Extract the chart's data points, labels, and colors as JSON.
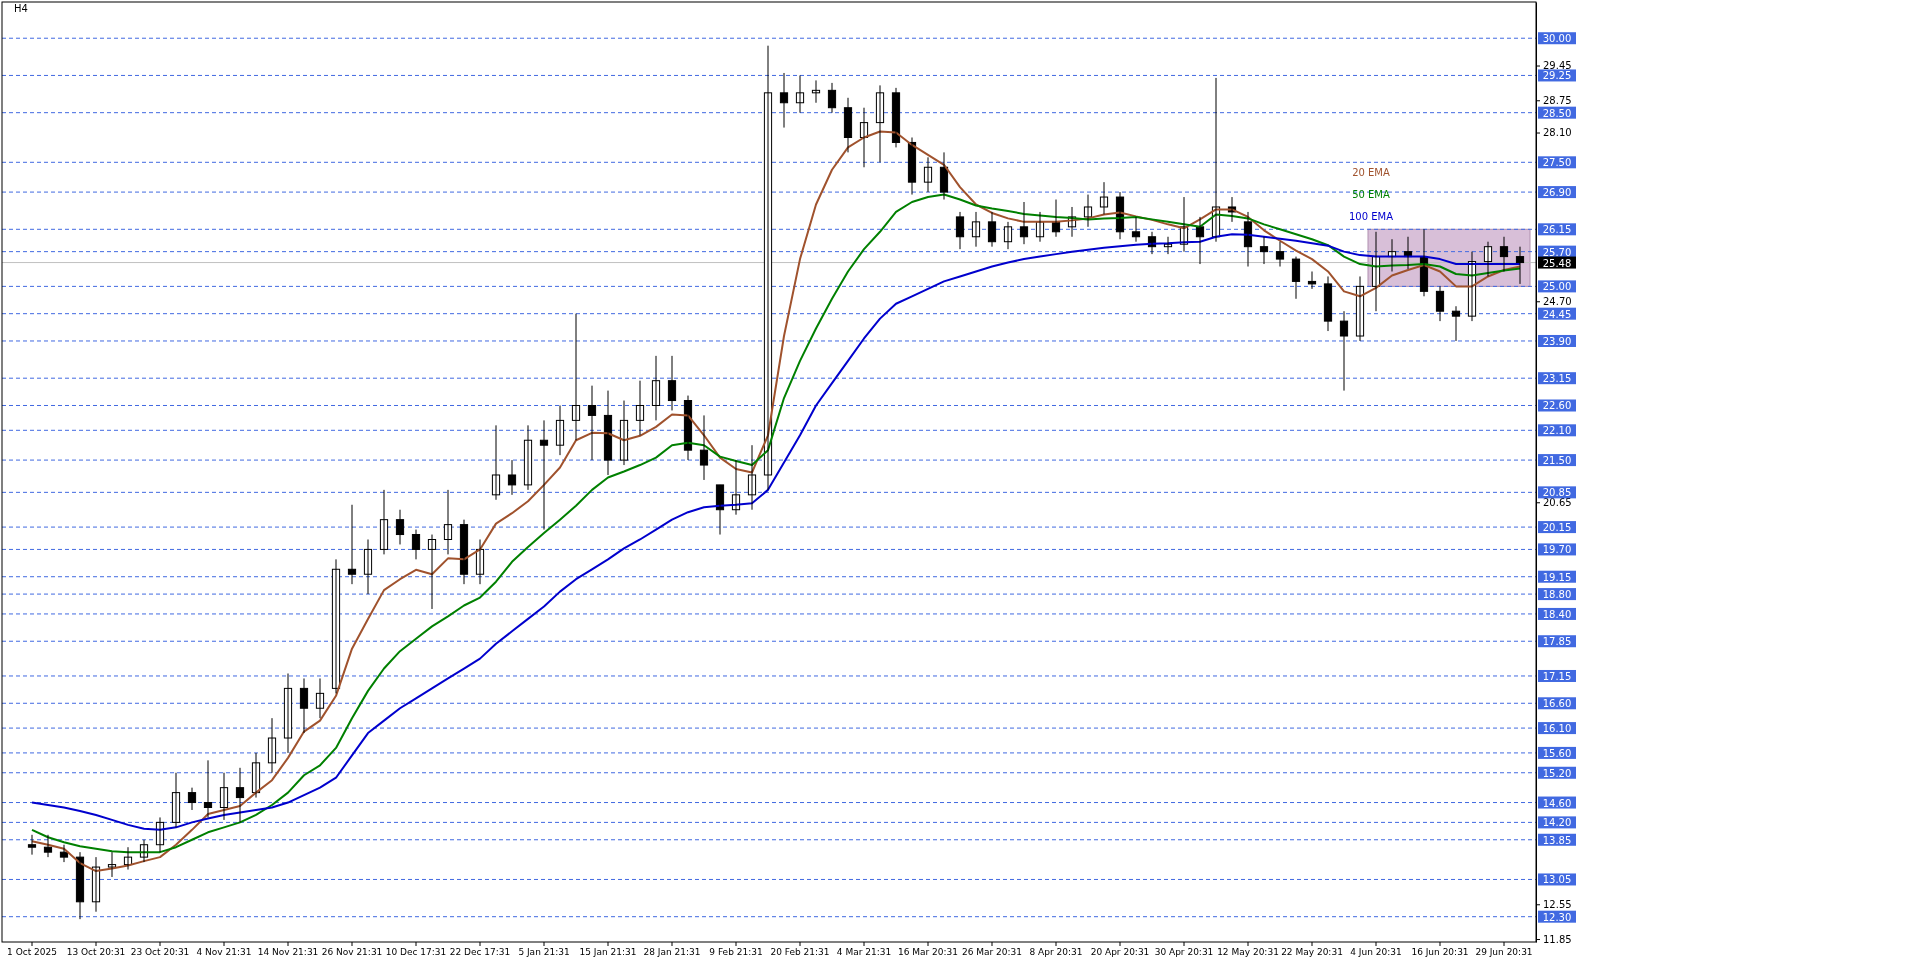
{
  "chart_data": {
    "type": "candlestick",
    "title": "H4",
    "categories": [
      "1 Oct 2025",
      null,
      null,
      null,
      "13 Oct 20:31",
      null,
      null,
      null,
      "23 Oct 20:31",
      null,
      null,
      null,
      "4 Nov 21:31",
      null,
      null,
      null,
      "14 Nov 21:31",
      null,
      null,
      null,
      "26 Nov 21:31",
      null,
      null,
      null,
      "10 Dec 17:31",
      null,
      null,
      null,
      "22 Dec 17:31",
      null,
      null,
      null,
      "5 Jan 21:31",
      null,
      null,
      null,
      "15 Jan 21:31",
      null,
      null,
      null,
      "28 Jan 21:31",
      null,
      null,
      null,
      "9 Feb 21:31",
      null,
      null,
      null,
      "20 Feb 21:31",
      null,
      null,
      null,
      "4 Mar 21:31",
      null,
      null,
      null,
      "16 Mar 20:31",
      null,
      null,
      null,
      "26 Mar 20:31",
      null,
      null,
      null,
      "8 Apr 20:31",
      null,
      null,
      null,
      "20 Apr 20:31",
      null,
      null,
      null,
      "30 Apr 20:31",
      null,
      null,
      null,
      "12 May 20:31",
      null,
      null,
      null,
      "22 May 20:31",
      null,
      null,
      null,
      "4 Jun 20:31",
      null,
      null,
      null,
      "16 Jun 20:31",
      null,
      null,
      null,
      "29 Jun 20:31",
      null
    ],
    "ohlc": [
      [
        13.75,
        13.95,
        13.55,
        13.7
      ],
      [
        13.7,
        13.95,
        13.5,
        13.6
      ],
      [
        13.6,
        13.75,
        13.4,
        13.5
      ],
      [
        13.5,
        13.6,
        12.25,
        12.6
      ],
      [
        12.6,
        13.5,
        12.4,
        13.3
      ],
      [
        13.3,
        13.6,
        13.1,
        13.35
      ],
      [
        13.35,
        13.7,
        13.25,
        13.5
      ],
      [
        13.5,
        13.85,
        13.4,
        13.75
      ],
      [
        13.75,
        14.3,
        13.6,
        14.2
      ],
      [
        14.2,
        15.2,
        14.1,
        14.8
      ],
      [
        14.8,
        14.9,
        14.45,
        14.6
      ],
      [
        14.6,
        15.45,
        14.3,
        14.5
      ],
      [
        14.5,
        15.2,
        14.25,
        14.9
      ],
      [
        14.9,
        15.3,
        14.2,
        14.7
      ],
      [
        14.8,
        15.6,
        14.7,
        15.4
      ],
      [
        15.4,
        16.3,
        15.2,
        15.9
      ],
      [
        15.9,
        17.2,
        15.6,
        16.9
      ],
      [
        16.9,
        17.1,
        16.0,
        16.5
      ],
      [
        16.5,
        17.1,
        16.3,
        16.8
      ],
      [
        16.9,
        19.5,
        16.8,
        19.3
      ],
      [
        19.3,
        20.6,
        19.0,
        19.2
      ],
      [
        19.2,
        19.9,
        18.8,
        19.7
      ],
      [
        19.7,
        20.9,
        19.6,
        20.3
      ],
      [
        20.3,
        20.5,
        19.8,
        20.0
      ],
      [
        20.0,
        20.1,
        19.5,
        19.7
      ],
      [
        19.7,
        20.0,
        18.5,
        19.9
      ],
      [
        19.9,
        20.9,
        19.6,
        20.2
      ],
      [
        20.2,
        20.3,
        19.0,
        19.2
      ],
      [
        19.2,
        19.9,
        19.0,
        19.7
      ],
      [
        20.8,
        22.2,
        20.7,
        21.2
      ],
      [
        21.2,
        21.5,
        20.8,
        21.0
      ],
      [
        21.0,
        22.2,
        20.9,
        21.9
      ],
      [
        21.9,
        22.3,
        20.1,
        21.8
      ],
      [
        21.8,
        22.6,
        21.6,
        22.3
      ],
      [
        22.3,
        24.45,
        21.9,
        22.6
      ],
      [
        22.6,
        23.0,
        21.5,
        22.4
      ],
      [
        22.4,
        22.9,
        21.2,
        21.5
      ],
      [
        21.5,
        22.7,
        21.4,
        22.3
      ],
      [
        22.3,
        23.1,
        22.0,
        22.6
      ],
      [
        22.6,
        23.6,
        22.3,
        23.1
      ],
      [
        23.1,
        23.6,
        22.5,
        22.7
      ],
      [
        22.7,
        22.8,
        21.5,
        21.7
      ],
      [
        21.7,
        22.4,
        21.1,
        21.4
      ],
      [
        21.0,
        21.0,
        20.0,
        20.5
      ],
      [
        20.5,
        21.5,
        20.4,
        20.8
      ],
      [
        20.8,
        21.8,
        20.5,
        21.2
      ],
      [
        21.2,
        29.85,
        20.9,
        28.9
      ],
      [
        28.9,
        29.3,
        28.2,
        28.7
      ],
      [
        28.7,
        29.25,
        28.5,
        28.9
      ],
      [
        28.9,
        29.15,
        28.7,
        28.95
      ],
      [
        28.95,
        29.1,
        28.5,
        28.6
      ],
      [
        28.6,
        28.8,
        27.7,
        28.0
      ],
      [
        28.0,
        28.6,
        27.4,
        28.3
      ],
      [
        28.3,
        29.05,
        27.5,
        28.9
      ],
      [
        28.9,
        29.0,
        27.8,
        27.9
      ],
      [
        27.9,
        28.0,
        26.85,
        27.1
      ],
      [
        27.1,
        27.6,
        26.9,
        27.4
      ],
      [
        27.4,
        27.7,
        26.75,
        26.9
      ],
      [
        26.4,
        26.5,
        25.75,
        26.0
      ],
      [
        26.0,
        26.5,
        25.8,
        26.3
      ],
      [
        26.3,
        26.5,
        25.8,
        25.9
      ],
      [
        25.9,
        26.3,
        25.75,
        26.2
      ],
      [
        26.2,
        26.7,
        25.85,
        26.0
      ],
      [
        26.0,
        26.5,
        25.9,
        26.3
      ],
      [
        26.3,
        26.75,
        26.0,
        26.1
      ],
      [
        26.2,
        26.6,
        26.0,
        26.4
      ],
      [
        26.4,
        26.85,
        26.2,
        26.6
      ],
      [
        26.6,
        27.1,
        26.45,
        26.8
      ],
      [
        26.8,
        26.9,
        25.95,
        26.1
      ],
      [
        26.1,
        26.4,
        25.9,
        26.0
      ],
      [
        26.0,
        26.1,
        25.65,
        25.8
      ],
      [
        25.8,
        26.0,
        25.65,
        25.85
      ],
      [
        25.85,
        26.8,
        25.7,
        26.2
      ],
      [
        26.2,
        26.4,
        25.45,
        26.0
      ],
      [
        26.0,
        29.2,
        25.9,
        26.6
      ],
      [
        26.6,
        26.8,
        26.3,
        26.5
      ],
      [
        26.3,
        26.5,
        25.4,
        25.8
      ],
      [
        25.8,
        26.0,
        25.45,
        25.7
      ],
      [
        25.7,
        25.9,
        25.4,
        25.55
      ],
      [
        25.55,
        25.6,
        24.75,
        25.1
      ],
      [
        25.1,
        25.3,
        24.95,
        25.05
      ],
      [
        25.05,
        25.2,
        24.1,
        24.3
      ],
      [
        24.3,
        24.5,
        22.9,
        24.0
      ],
      [
        24.0,
        25.2,
        23.9,
        25.0
      ],
      [
        25.0,
        26.1,
        24.5,
        25.6
      ],
      [
        25.6,
        25.95,
        25.3,
        25.7
      ],
      [
        25.7,
        26.0,
        25.35,
        25.6
      ],
      [
        25.6,
        26.15,
        24.8,
        24.9
      ],
      [
        24.9,
        25.0,
        24.3,
        24.5
      ],
      [
        24.5,
        24.6,
        23.9,
        24.4
      ],
      [
        24.4,
        25.7,
        24.3,
        25.5
      ],
      [
        25.5,
        25.9,
        25.2,
        25.8
      ],
      [
        25.8,
        26.0,
        25.3,
        25.6
      ],
      [
        25.6,
        25.8,
        25.05,
        25.48
      ]
    ],
    "series": [
      {
        "name": "20 EMA",
        "type": "line",
        "color": "#a0522d",
        "values": [
          13.82,
          13.75,
          13.67,
          13.38,
          13.22,
          13.27,
          13.33,
          13.42,
          13.5,
          13.75,
          14.05,
          14.37,
          14.45,
          14.53,
          14.8,
          15.05,
          15.5,
          16.03,
          16.25,
          16.75,
          17.7,
          18.3,
          18.88,
          19.1,
          19.29,
          19.2,
          19.52,
          19.5,
          19.7,
          20.22,
          20.43,
          20.67,
          21.0,
          21.35,
          21.9,
          22.05,
          22.04,
          21.9,
          21.99,
          22.17,
          22.42,
          22.4,
          22.0,
          21.55,
          21.32,
          21.25,
          22.0,
          24.0,
          25.55,
          26.65,
          27.35,
          27.8,
          28.0,
          28.12,
          28.1,
          27.85,
          27.65,
          27.45,
          27.0,
          26.65,
          26.48,
          26.37,
          26.3,
          26.3,
          26.3,
          26.33,
          26.37,
          26.45,
          26.49,
          26.41,
          26.34,
          26.25,
          26.17,
          26.35,
          26.55,
          26.55,
          26.4,
          26.13,
          25.92,
          25.72,
          25.55,
          25.3,
          24.9,
          24.8,
          24.97,
          25.22,
          25.33,
          25.43,
          25.3,
          25.0,
          25.0,
          25.2,
          25.33,
          25.4
        ]
      },
      {
        "name": "50 EMA",
        "type": "line",
        "color": "#008000",
        "values": [
          14.05,
          13.9,
          13.8,
          13.72,
          13.67,
          13.62,
          13.6,
          13.6,
          13.6,
          13.7,
          13.85,
          14.0,
          14.1,
          14.2,
          14.35,
          14.55,
          14.8,
          15.15,
          15.35,
          15.7,
          16.3,
          16.85,
          17.3,
          17.65,
          17.9,
          18.15,
          18.35,
          18.57,
          18.73,
          19.05,
          19.45,
          19.75,
          20.03,
          20.3,
          20.58,
          20.9,
          21.15,
          21.27,
          21.4,
          21.55,
          21.8,
          21.85,
          21.8,
          21.57,
          21.48,
          21.4,
          21.7,
          22.75,
          23.5,
          24.15,
          24.75,
          25.3,
          25.75,
          26.1,
          26.5,
          26.7,
          26.8,
          26.85,
          26.75,
          26.63,
          26.57,
          26.52,
          26.46,
          26.43,
          26.4,
          26.38,
          26.35,
          26.37,
          26.38,
          26.4,
          26.35,
          26.3,
          26.25,
          26.2,
          26.45,
          26.42,
          26.37,
          26.25,
          26.15,
          26.05,
          25.95,
          25.83,
          25.6,
          25.45,
          25.4,
          25.42,
          25.43,
          25.45,
          25.4,
          25.25,
          25.22,
          25.27,
          25.32,
          25.36
        ]
      },
      {
        "name": "100 EMA",
        "type": "line",
        "color": "#0000cd",
        "values": [
          14.6,
          14.55,
          14.5,
          14.43,
          14.35,
          14.25,
          14.15,
          14.07,
          14.05,
          14.1,
          14.2,
          14.28,
          14.35,
          14.4,
          14.45,
          14.5,
          14.6,
          14.75,
          14.9,
          15.1,
          15.55,
          16.0,
          16.25,
          16.5,
          16.7,
          16.9,
          17.1,
          17.3,
          17.5,
          17.8,
          18.05,
          18.3,
          18.55,
          18.85,
          19.1,
          19.3,
          19.5,
          19.72,
          19.9,
          20.1,
          20.3,
          20.45,
          20.55,
          20.58,
          20.6,
          20.63,
          20.9,
          21.45,
          22.0,
          22.6,
          23.05,
          23.5,
          23.95,
          24.35,
          24.65,
          24.8,
          24.95,
          25.1,
          25.2,
          25.3,
          25.4,
          25.48,
          25.55,
          25.6,
          25.65,
          25.7,
          25.74,
          25.78,
          25.81,
          25.84,
          25.86,
          25.87,
          25.89,
          25.9,
          26.0,
          26.05,
          26.04,
          26.0,
          25.96,
          25.92,
          25.87,
          25.82,
          25.7,
          25.63,
          25.6,
          25.6,
          25.6,
          25.6,
          25.55,
          25.45,
          25.45,
          25.45,
          25.45,
          25.45
        ]
      }
    ],
    "ylim": [
      11.79,
      30.73
    ],
    "yticks": [
      {
        "value": 29.45,
        "label": "29.45"
      },
      {
        "value": 28.75,
        "label": "28.75"
      },
      {
        "value": 28.1,
        "label": "28.10"
      },
      {
        "value": 24.7,
        "label": "24.70"
      },
      {
        "value": 20.65,
        "label": "20.65"
      },
      {
        "value": 12.55,
        "label": "12.55"
      },
      {
        "value": 11.85,
        "label": "11.85"
      }
    ],
    "ref_lines": [
      {
        "axis": "y",
        "value": 30.0,
        "label": "30.00",
        "color": "#4169e1",
        "line_style": "dashed"
      },
      {
        "axis": "y",
        "value": 29.25,
        "label": "29.25",
        "color": "#4169e1",
        "line_style": "dashed"
      },
      {
        "axis": "y",
        "value": 28.5,
        "label": "28.50",
        "color": "#4169e1",
        "line_style": "dashed"
      },
      {
        "axis": "y",
        "value": 27.5,
        "label": "27.50",
        "color": "#4169e1",
        "line_style": "dashed"
      },
      {
        "axis": "y",
        "value": 26.9,
        "label": "26.90",
        "color": "#4169e1",
        "line_style": "dashed"
      },
      {
        "axis": "y",
        "value": 26.15,
        "label": "26.15",
        "color": "#4169e1",
        "line_style": "dashed"
      },
      {
        "axis": "y",
        "value": 25.7,
        "label": "25.70",
        "color": "#4169e1",
        "line_style": "dashed"
      },
      {
        "axis": "y",
        "value": 25.48,
        "label": "25.48",
        "color": "#c0c0c0",
        "line_style": "solid"
      },
      {
        "axis": "y",
        "value": 25.0,
        "label": "25.00",
        "color": "#4169e1",
        "line_style": "dashed"
      },
      {
        "axis": "y",
        "value": 24.45,
        "label": "24.45",
        "color": "#4169e1",
        "line_style": "dashed"
      },
      {
        "axis": "y",
        "value": 23.9,
        "label": "23.90",
        "color": "#4169e1",
        "line_style": "dashed"
      },
      {
        "axis": "y",
        "value": 23.15,
        "label": "23.15",
        "color": "#4169e1",
        "line_style": "dashed"
      },
      {
        "axis": "y",
        "value": 22.6,
        "label": "22.60",
        "color": "#4169e1",
        "line_style": "dashed"
      },
      {
        "axis": "y",
        "value": 22.1,
        "label": "22.10",
        "color": "#4169e1",
        "line_style": "dashed"
      },
      {
        "axis": "y",
        "value": 21.5,
        "label": "21.50",
        "color": "#4169e1",
        "line_style": "dashed"
      },
      {
        "axis": "y",
        "value": 20.85,
        "label": "20.85",
        "color": "#4169e1",
        "line_style": "dashed"
      },
      {
        "axis": "y",
        "value": 20.15,
        "label": "20.15",
        "color": "#4169e1",
        "line_style": "dashed"
      },
      {
        "axis": "y",
        "value": 19.7,
        "label": "19.70",
        "color": "#4169e1",
        "line_style": "dashed"
      },
      {
        "axis": "y",
        "value": 19.15,
        "label": "19.15",
        "color": "#4169e1",
        "line_style": "dashed"
      },
      {
        "axis": "y",
        "value": 18.8,
        "label": "18.80",
        "color": "#4169e1",
        "line_style": "dashed"
      },
      {
        "axis": "y",
        "value": 18.4,
        "label": "18.40",
        "color": "#4169e1",
        "line_style": "dashed"
      },
      {
        "axis": "y",
        "value": 17.85,
        "label": "17.85",
        "color": "#4169e1",
        "line_style": "dashed"
      },
      {
        "axis": "y",
        "value": 17.15,
        "label": "17.15",
        "color": "#4169e1",
        "line_style": "dashed"
      },
      {
        "axis": "y",
        "value": 16.6,
        "label": "16.60",
        "color": "#4169e1",
        "line_style": "dashed"
      },
      {
        "axis": "y",
        "value": 16.1,
        "label": "16.10",
        "color": "#4169e1",
        "line_style": "dashed"
      },
      {
        "axis": "y",
        "value": 15.6,
        "label": "15.60",
        "color": "#4169e1",
        "line_style": "dashed"
      },
      {
        "axis": "y",
        "value": 15.2,
        "label": "15.20",
        "color": "#4169e1",
        "line_style": "dashed"
      },
      {
        "axis": "y",
        "value": 14.6,
        "label": "14.60",
        "color": "#4169e1",
        "line_style": "dashed"
      },
      {
        "axis": "y",
        "value": 14.2,
        "label": "14.20",
        "color": "#4169e1",
        "line_style": "dashed"
      },
      {
        "axis": "y",
        "value": 13.85,
        "label": "13.85",
        "color": "#4169e1",
        "line_style": "dashed"
      },
      {
        "axis": "y",
        "value": 13.05,
        "label": "13.05",
        "color": "#4169e1",
        "line_style": "dashed"
      },
      {
        "axis": "y",
        "value": 12.3,
        "label": "12.30",
        "color": "#4169e1",
        "line_style": "dashed"
      }
    ],
    "bands": [
      {
        "axis": "y",
        "from": 25.0,
        "to": 26.15,
        "color": "#d8bfd8"
      }
    ],
    "grid": false
  }
}
